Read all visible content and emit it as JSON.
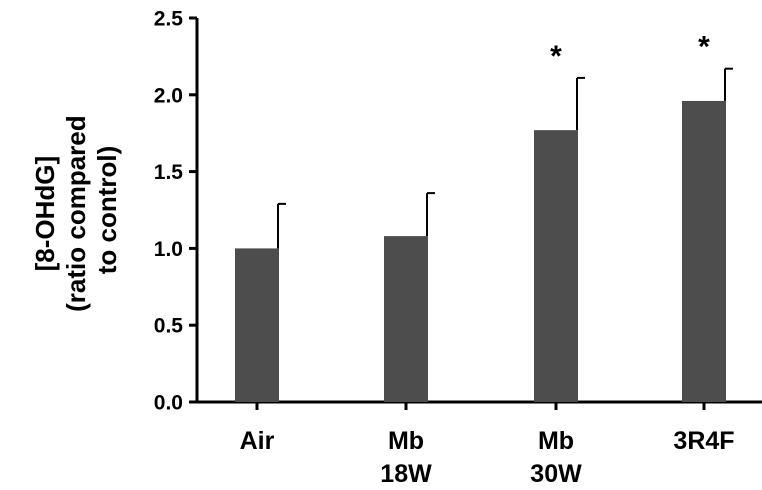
{
  "chart_data": {
    "type": "bar",
    "categories": [
      [
        "Air"
      ],
      [
        "Mb",
        "18W"
      ],
      [
        "Mb",
        "30W"
      ],
      [
        "3R4F"
      ]
    ],
    "values": [
      1.0,
      1.08,
      1.77,
      1.96
    ],
    "error_upper": [
      1.29,
      1.36,
      2.11,
      2.17
    ],
    "annotations": [
      "",
      "",
      "*",
      "*"
    ],
    "ylabel_lines": [
      "[8-OHdG]",
      "(ratio compared",
      "to control)"
    ],
    "xlabel": "",
    "ylim": [
      0,
      2.5
    ],
    "yticks": [
      0.0,
      0.5,
      1.0,
      1.5,
      2.0,
      2.5
    ],
    "ytick_labels": [
      "0.0",
      "0.5",
      "1.0",
      "1.5",
      "2.0",
      "2.5"
    ],
    "grid": false,
    "bar_color": "#4d4d4d",
    "axis_color": "#000000"
  }
}
